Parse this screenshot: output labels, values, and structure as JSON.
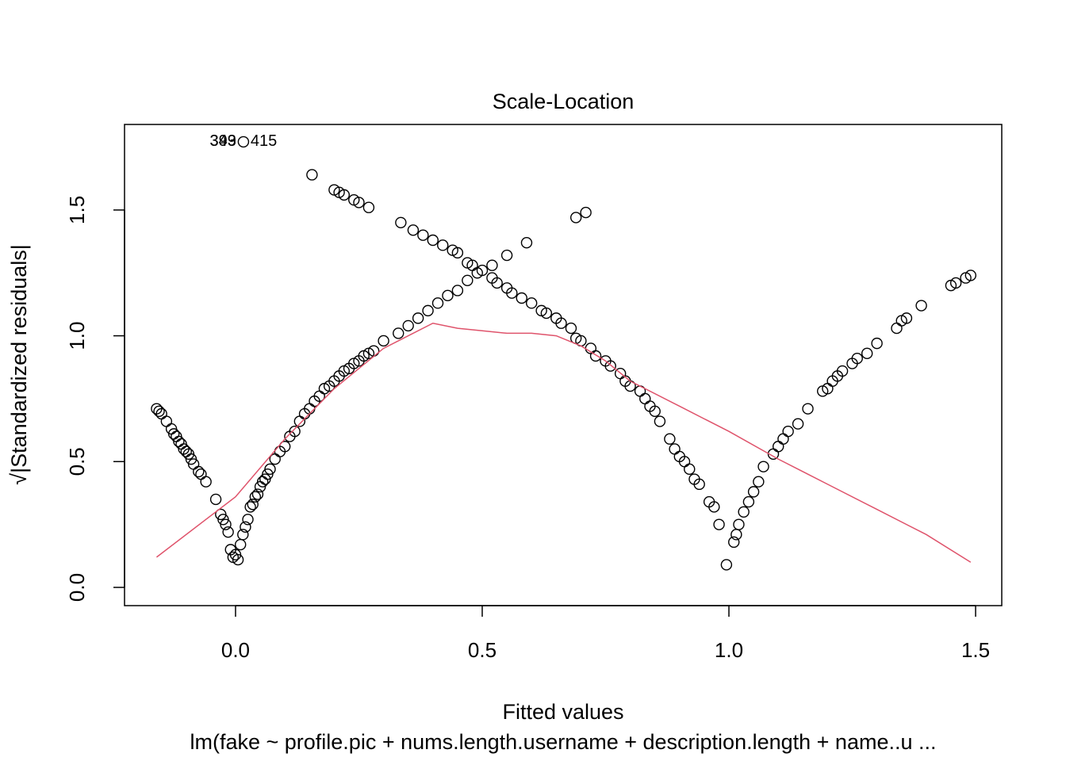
{
  "chart_data": {
    "type": "scatter",
    "title": "Scale-Location",
    "xlabel": "Fitted values",
    "ylabel": "√|Standardized residuals|",
    "subtitle": "lm(fake ~ profile.pic + nums.length.username + description.length + name..u ...",
    "xlim": [
      -0.225,
      1.553
    ],
    "ylim": [
      -0.0725,
      1.84
    ],
    "xticks": [
      {
        "value": 0,
        "label": "0.0"
      },
      {
        "value": 0.5,
        "label": "0.5"
      },
      {
        "value": 1,
        "label": "1.0"
      },
      {
        "value": 1.5,
        "label": "1.5"
      }
    ],
    "yticks": [
      {
        "value": 0,
        "label": "0.0"
      },
      {
        "value": 0.5,
        "label": "0.5"
      },
      {
        "value": 1,
        "label": "1.0"
      },
      {
        "value": 1.5,
        "label": "1.5"
      }
    ],
    "points": {
      "color": "#000000",
      "x": [
        -0.16,
        -0.155,
        -0.15,
        -0.14,
        -0.13,
        -0.125,
        -0.12,
        -0.115,
        -0.11,
        -0.105,
        -0.1,
        -0.095,
        -0.09,
        -0.085,
        -0.075,
        -0.07,
        -0.06,
        -0.04,
        -0.03,
        -0.025,
        -0.02,
        -0.015,
        -0.01,
        -0.005,
        0.0,
        0.005,
        0.01,
        0.015,
        0.02,
        0.025,
        0.03,
        0.035,
        0.04,
        0.045,
        0.05,
        0.055,
        0.06,
        0.065,
        0.07,
        0.08,
        0.09,
        0.1,
        0.11,
        0.12,
        0.13,
        0.14,
        0.15,
        0.16,
        0.17,
        0.18,
        0.19,
        0.2,
        0.21,
        0.22,
        0.23,
        0.24,
        0.25,
        0.26,
        0.27,
        0.28,
        0.3,
        0.33,
        0.35,
        0.37,
        0.39,
        0.41,
        0.43,
        0.45,
        0.47,
        0.49,
        0.52,
        0.55,
        0.59,
        0.69,
        0.71,
        0.155,
        0.2,
        0.21,
        0.22,
        0.24,
        0.25,
        0.27,
        0.335,
        0.36,
        0.38,
        0.4,
        0.42,
        0.44,
        0.45,
        0.47,
        0.48,
        0.5,
        0.52,
        0.53,
        0.55,
        0.56,
        0.58,
        0.6,
        0.62,
        0.63,
        0.65,
        0.66,
        0.68,
        0.69,
        0.7,
        0.72,
        0.73,
        0.75,
        0.76,
        0.78,
        0.79,
        0.8,
        0.82,
        0.83,
        0.84,
        0.85,
        0.86,
        0.88,
        0.89,
        0.9,
        0.91,
        0.92,
        0.93,
        0.94,
        0.96,
        0.97,
        0.98,
        0.995,
        1.01,
        1.015,
        1.02,
        1.03,
        1.04,
        1.05,
        1.06,
        1.07,
        1.09,
        1.1,
        1.11,
        1.12,
        1.14,
        1.16,
        1.19,
        1.2,
        1.21,
        1.22,
        1.23,
        1.25,
        1.26,
        1.28,
        1.3,
        1.34,
        1.35,
        1.36,
        1.39,
        1.45,
        1.46,
        1.48,
        1.49,
        0.016
      ],
      "y": [
        0.71,
        0.7,
        0.69,
        0.66,
        0.63,
        0.61,
        0.6,
        0.58,
        0.57,
        0.55,
        0.54,
        0.53,
        0.51,
        0.49,
        0.46,
        0.45,
        0.42,
        0.35,
        0.29,
        0.27,
        0.25,
        0.22,
        0.15,
        0.12,
        0.13,
        0.11,
        0.17,
        0.21,
        0.24,
        0.27,
        0.32,
        0.33,
        0.36,
        0.37,
        0.4,
        0.42,
        0.43,
        0.45,
        0.47,
        0.51,
        0.54,
        0.56,
        0.6,
        0.62,
        0.66,
        0.69,
        0.71,
        0.74,
        0.76,
        0.79,
        0.8,
        0.82,
        0.84,
        0.86,
        0.87,
        0.89,
        0.9,
        0.92,
        0.93,
        0.94,
        0.98,
        1.01,
        1.04,
        1.07,
        1.1,
        1.13,
        1.16,
        1.18,
        1.22,
        1.25,
        1.28,
        1.32,
        1.37,
        1.47,
        1.49,
        1.64,
        1.58,
        1.57,
        1.56,
        1.54,
        1.53,
        1.51,
        1.45,
        1.42,
        1.4,
        1.38,
        1.36,
        1.34,
        1.33,
        1.29,
        1.28,
        1.26,
        1.23,
        1.21,
        1.19,
        1.17,
        1.15,
        1.13,
        1.1,
        1.09,
        1.07,
        1.05,
        1.03,
        0.99,
        0.98,
        0.95,
        0.92,
        0.9,
        0.88,
        0.85,
        0.82,
        0.8,
        0.78,
        0.75,
        0.72,
        0.7,
        0.66,
        0.59,
        0.55,
        0.52,
        0.5,
        0.47,
        0.43,
        0.41,
        0.34,
        0.32,
        0.25,
        0.09,
        0.18,
        0.21,
        0.25,
        0.3,
        0.34,
        0.38,
        0.42,
        0.48,
        0.53,
        0.56,
        0.59,
        0.62,
        0.65,
        0.71,
        0.78,
        0.79,
        0.82,
        0.84,
        0.86,
        0.89,
        0.91,
        0.93,
        0.97,
        1.03,
        1.06,
        1.07,
        1.12,
        1.2,
        1.21,
        1.23,
        1.24,
        1.771
      ]
    },
    "smooth": {
      "color": "#DF536B",
      "x": [
        -0.16,
        0.0,
        0.1,
        0.2,
        0.3,
        0.4,
        0.45,
        0.5,
        0.55,
        0.6,
        0.65,
        0.7,
        0.75,
        0.8,
        0.9,
        1.0,
        1.1,
        1.2,
        1.3,
        1.4,
        1.49
      ],
      "y": [
        0.12,
        0.36,
        0.59,
        0.79,
        0.95,
        1.05,
        1.03,
        1.02,
        1.01,
        1.01,
        1.0,
        0.96,
        0.9,
        0.82,
        0.72,
        0.62,
        0.51,
        0.41,
        0.31,
        0.21,
        0.1
      ]
    },
    "annotations": [
      {
        "text": "349",
        "x": 0.016,
        "y": 1.771,
        "side": "left"
      },
      {
        "text": "393",
        "x": 0.016,
        "y": 1.771,
        "side": "left"
      },
      {
        "text": "415",
        "x": 0.016,
        "y": 1.771,
        "side": "right"
      }
    ]
  }
}
